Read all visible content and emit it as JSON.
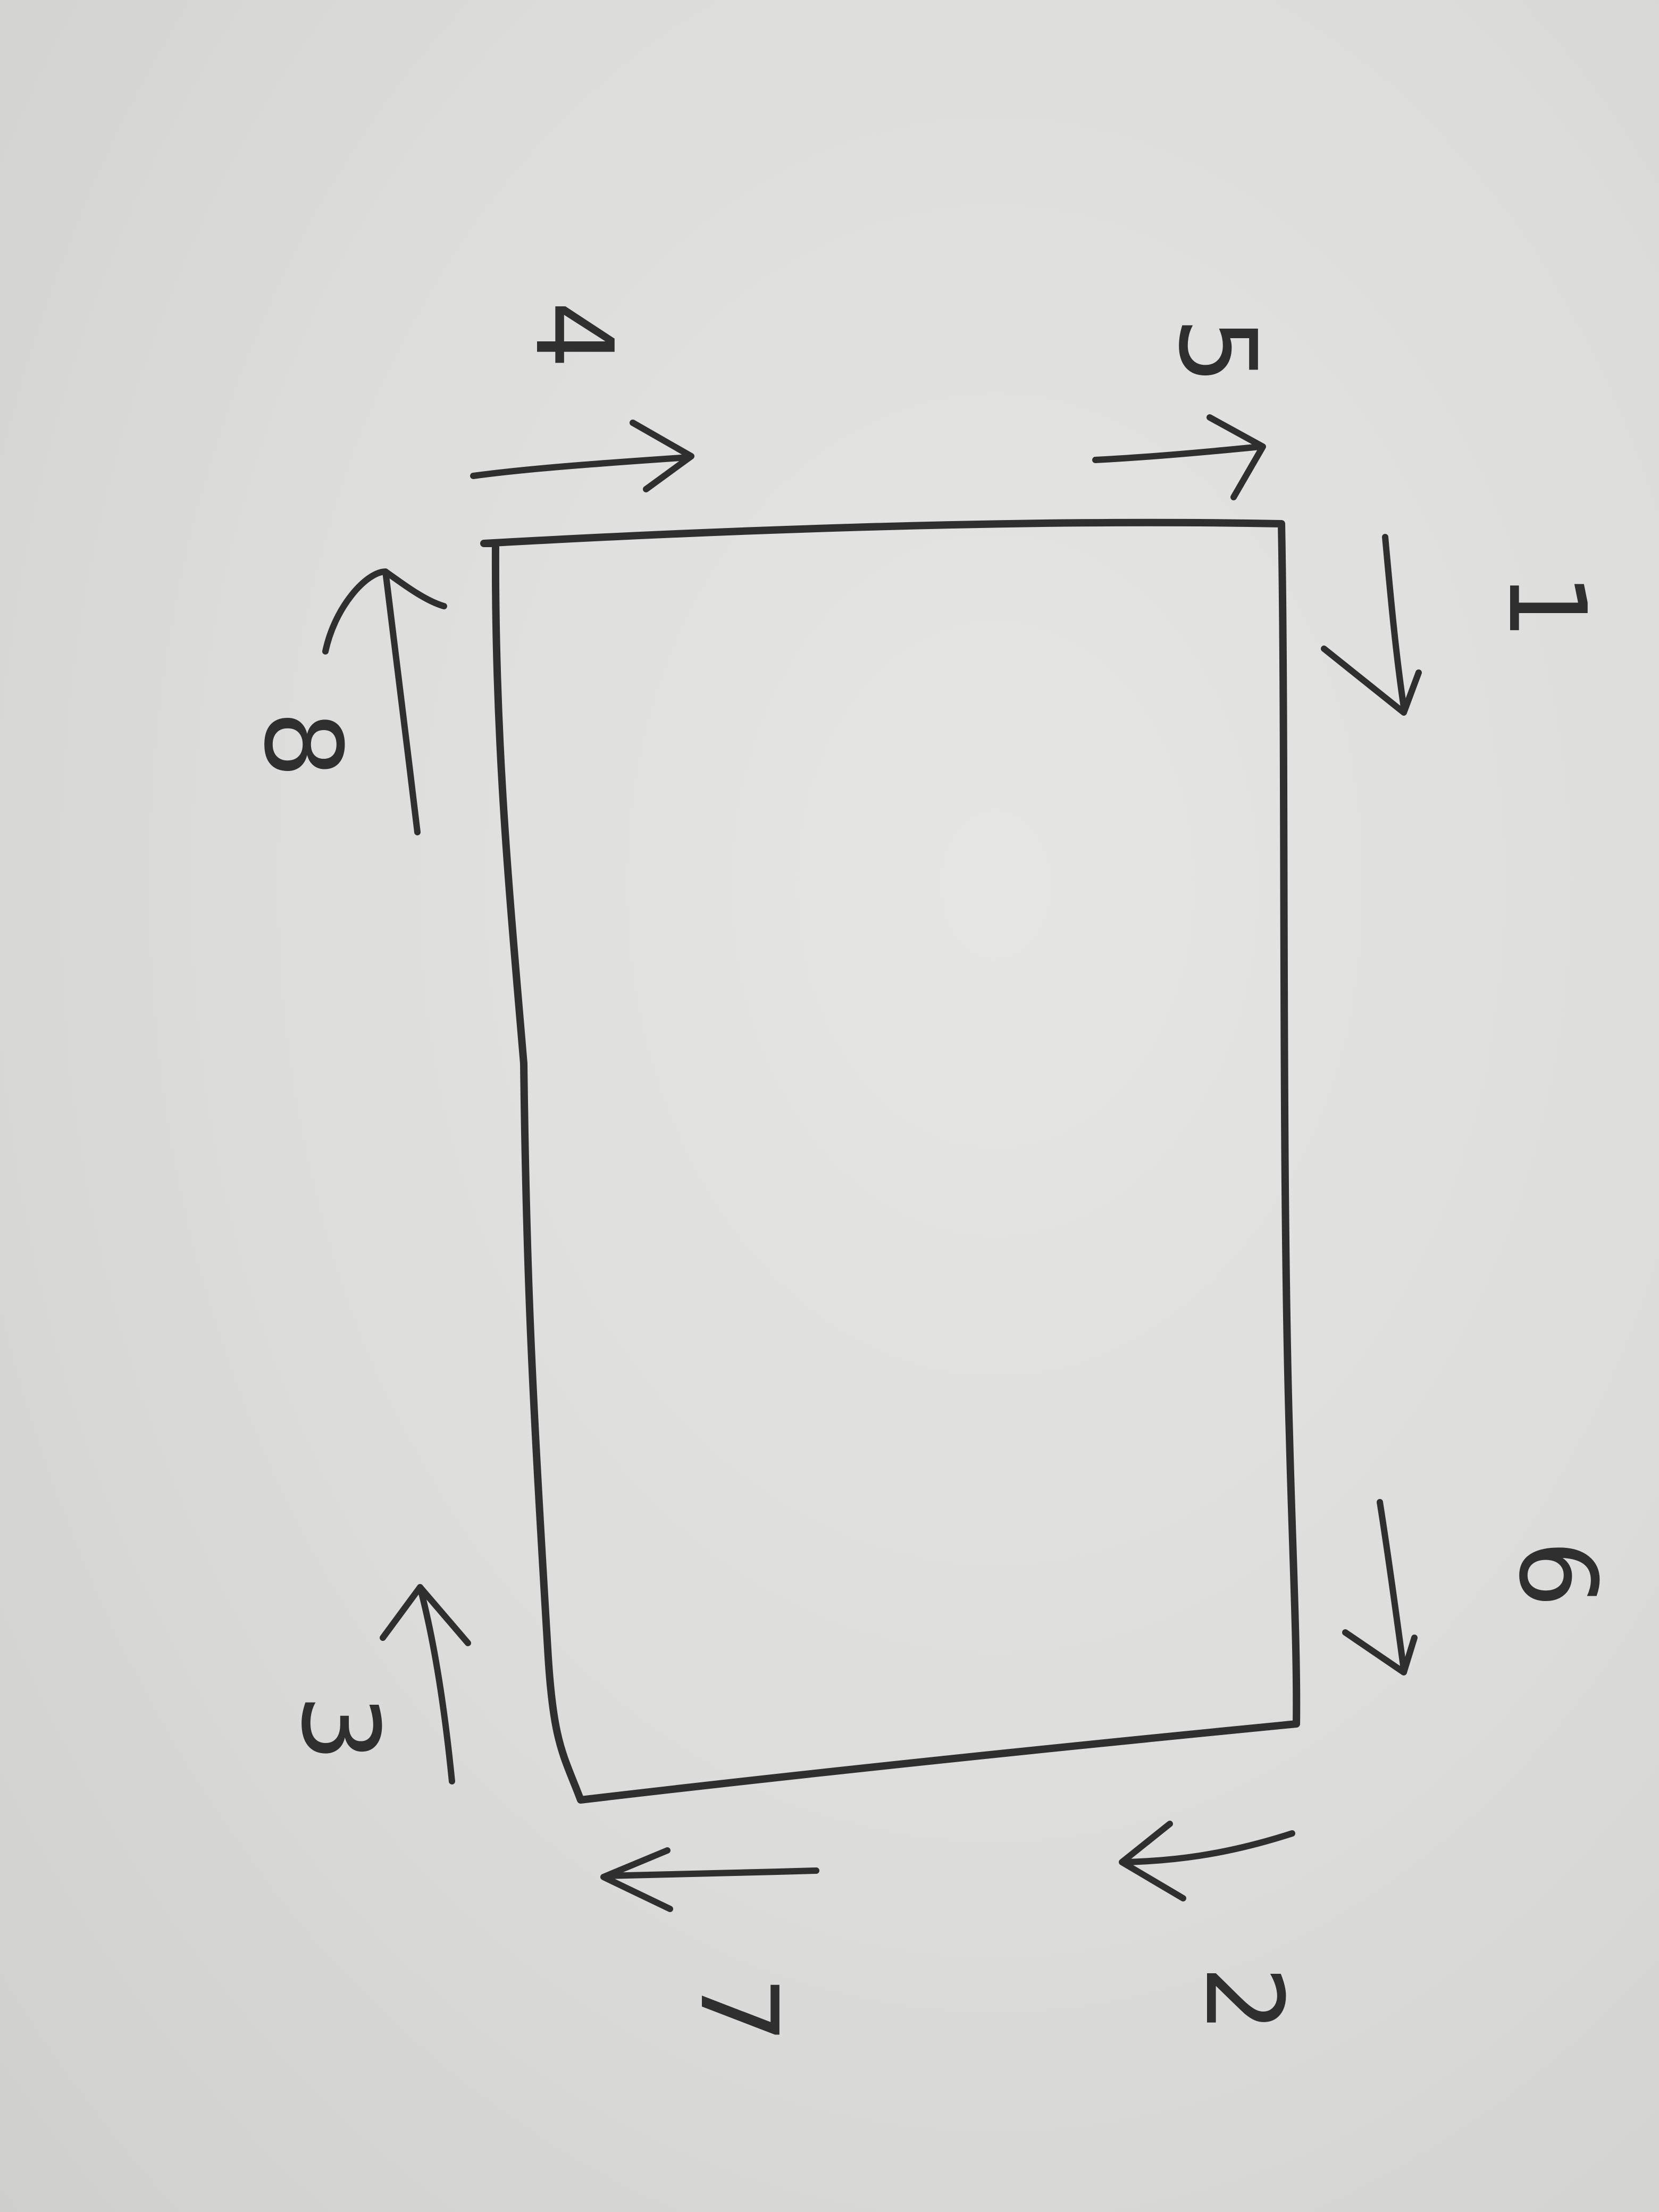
{
  "diagram": {
    "labels": {
      "n1": "1",
      "n2": "2",
      "n3": "3",
      "n4": "4",
      "n5": "5",
      "n6": "6",
      "n7": "7",
      "n8": "8"
    },
    "ink_color": "#2f2f2f",
    "paper_color": "#dcdcda"
  }
}
